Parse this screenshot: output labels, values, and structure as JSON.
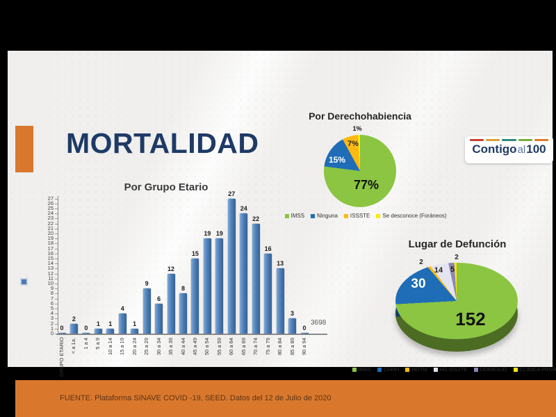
{
  "title": "MORTALIDAD",
  "logo": {
    "word_bold_1": "Contigo",
    "word_light": "al",
    "word_bold_2": "100",
    "dash_colors": [
      "#c8402f",
      "#d8a13a",
      "#2e8b7a",
      "#7aab3c",
      "#e07b28"
    ]
  },
  "accent_color": "#d9782d",
  "footer": {
    "source_text": "FUENTE. Plataforma SINAVE COVID -19, SEED. Datos del 12 de Julio de 2020"
  },
  "chart_data": [
    {
      "type": "bar",
      "title": "Por Grupo Etario",
      "categories": [
        "GRUPO ETARIO",
        "< a 1a.",
        "1 a 4",
        "5 a 9",
        "10 a 14",
        "15 a 19",
        "20 a 24",
        "25 a 29",
        "30 a 34",
        "35 a 39",
        "40 a 44",
        "45 a 49",
        "50 a 54",
        "55 a 59",
        "60 a 64",
        "65 a 69",
        "70 a 74",
        "75 a 79",
        "80 a 84",
        "85 a 89",
        "90 a 94"
      ],
      "values": [
        0,
        2,
        0,
        1,
        1,
        4,
        1,
        9,
        6,
        12,
        8,
        15,
        19,
        19,
        27,
        24,
        22,
        16,
        13,
        3,
        0
      ],
      "ylim": [
        0,
        27
      ],
      "ytick_step": 1,
      "bar_color": "#4f81bd",
      "data_labels": true,
      "grid": false,
      "annotation": "3698"
    },
    {
      "type": "pie",
      "title": "Por Derechohabiencia",
      "labels": [
        "IMSS",
        "Ninguna",
        "ISSSTE",
        "Se desconoce (Foráneos)"
      ],
      "values": [
        77,
        15,
        7,
        1
      ],
      "unit": "%",
      "colors": [
        "#8bc541",
        "#1f6db6",
        "#fdb913",
        "#ffe900"
      ],
      "legend_position": "bottom"
    },
    {
      "type": "pie",
      "style": "3d",
      "title": "Lugar de Defunción",
      "labels": [
        "IMSS",
        "CHMH",
        "HGTM",
        "HG ISSSTE",
        "DOMICILIO",
        "CLINICA PRIVADA"
      ],
      "values": [
        152,
        30,
        2,
        14,
        5,
        2
      ],
      "unit": "",
      "colors": [
        "#8bc541",
        "#1f6db6",
        "#fdb913",
        "#e4e4ef",
        "#8d85b5",
        "#ffe900"
      ],
      "legend_position": "bottom"
    }
  ]
}
